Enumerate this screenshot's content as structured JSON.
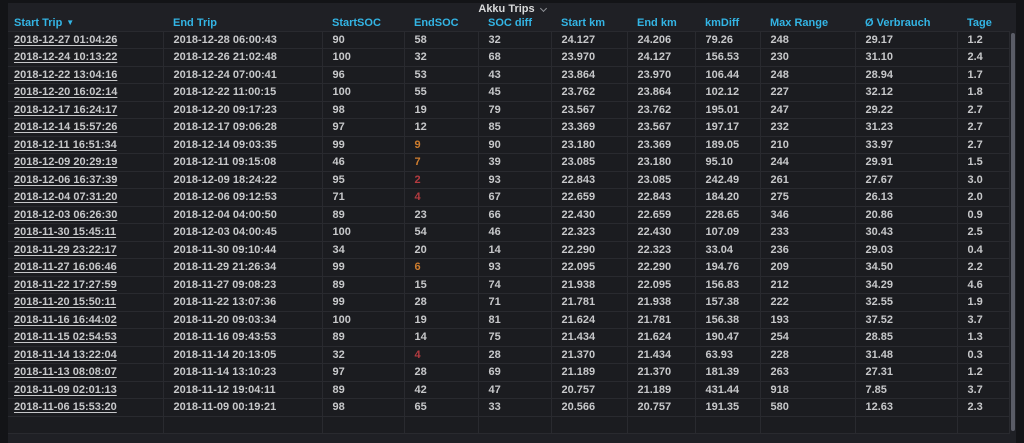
{
  "panel": {
    "title": "Akku Trips"
  },
  "colors": {
    "header_blue": "#33b5e5",
    "threshold_orange": "#cd7c2e",
    "threshold_red": "#b33b40",
    "cell_text": "#c7c8ca",
    "row_bg": "#1b1c20",
    "panel_bg": "#1f2025",
    "page_bg": "#131417"
  },
  "icons": {
    "title_chevron": "chevron-down",
    "sort_caret": "caret-down"
  },
  "table": {
    "columns": [
      {
        "key": "start_trip",
        "label": "Start Trip",
        "sorted": true,
        "link": true
      },
      {
        "key": "end_trip",
        "label": "End Trip",
        "sorted": false,
        "link": false
      },
      {
        "key": "start_soc",
        "label": "StartSOC",
        "sorted": false,
        "link": false
      },
      {
        "key": "end_soc",
        "label": "EndSOC",
        "sorted": false,
        "link": false
      },
      {
        "key": "soc_diff",
        "label": "SOC diff",
        "sorted": false,
        "link": false
      },
      {
        "key": "start_km",
        "label": "Start km",
        "sorted": false,
        "link": false
      },
      {
        "key": "end_km",
        "label": "End km",
        "sorted": false,
        "link": false
      },
      {
        "key": "km_diff",
        "label": "kmDiff",
        "sorted": false,
        "link": false
      },
      {
        "key": "max_range",
        "label": "Max Range",
        "sorted": false,
        "link": false
      },
      {
        "key": "verbrauch",
        "label": "Ø Verbrauch",
        "sorted": false,
        "link": false
      },
      {
        "key": "tage",
        "label": "Tage",
        "sorted": false,
        "link": false
      }
    ],
    "rows": [
      {
        "start_trip": "2018-12-27 01:04:26",
        "end_trip": "2018-12-28 06:00:43",
        "start_soc": "90",
        "end_soc": "58",
        "end_soc_color": "default",
        "soc_diff": "32",
        "start_km": "24.127",
        "end_km": "24.206",
        "km_diff": "79.26",
        "max_range": "248",
        "verbrauch": "29.17",
        "tage": "1.2"
      },
      {
        "start_trip": "2018-12-24 10:13:22",
        "end_trip": "2018-12-26 21:02:48",
        "start_soc": "100",
        "end_soc": "32",
        "end_soc_color": "default",
        "soc_diff": "68",
        "start_km": "23.970",
        "end_km": "24.127",
        "km_diff": "156.53",
        "max_range": "230",
        "verbrauch": "31.10",
        "tage": "2.4"
      },
      {
        "start_trip": "2018-12-22 13:04:16",
        "end_trip": "2018-12-24 07:00:41",
        "start_soc": "96",
        "end_soc": "53",
        "end_soc_color": "default",
        "soc_diff": "43",
        "start_km": "23.864",
        "end_km": "23.970",
        "km_diff": "106.44",
        "max_range": "248",
        "verbrauch": "28.94",
        "tage": "1.7"
      },
      {
        "start_trip": "2018-12-20 16:02:14",
        "end_trip": "2018-12-22 11:00:15",
        "start_soc": "100",
        "end_soc": "55",
        "end_soc_color": "default",
        "soc_diff": "45",
        "start_km": "23.762",
        "end_km": "23.864",
        "km_diff": "102.12",
        "max_range": "227",
        "verbrauch": "32.12",
        "tage": "1.8"
      },
      {
        "start_trip": "2018-12-17 16:24:17",
        "end_trip": "2018-12-20 09:17:23",
        "start_soc": "98",
        "end_soc": "19",
        "end_soc_color": "default",
        "soc_diff": "79",
        "start_km": "23.567",
        "end_km": "23.762",
        "km_diff": "195.01",
        "max_range": "247",
        "verbrauch": "29.22",
        "tage": "2.7"
      },
      {
        "start_trip": "2018-12-14 15:57:26",
        "end_trip": "2018-12-17 09:06:28",
        "start_soc": "97",
        "end_soc": "12",
        "end_soc_color": "default",
        "soc_diff": "85",
        "start_km": "23.369",
        "end_km": "23.567",
        "km_diff": "197.17",
        "max_range": "232",
        "verbrauch": "31.23",
        "tage": "2.7"
      },
      {
        "start_trip": "2018-12-11 16:51:34",
        "end_trip": "2018-12-14 09:03:35",
        "start_soc": "99",
        "end_soc": "9",
        "end_soc_color": "orange",
        "soc_diff": "90",
        "start_km": "23.180",
        "end_km": "23.369",
        "km_diff": "189.05",
        "max_range": "210",
        "verbrauch": "33.97",
        "tage": "2.7"
      },
      {
        "start_trip": "2018-12-09 20:29:19",
        "end_trip": "2018-12-11 09:15:08",
        "start_soc": "46",
        "end_soc": "7",
        "end_soc_color": "orange",
        "soc_diff": "39",
        "start_km": "23.085",
        "end_km": "23.180",
        "km_diff": "95.10",
        "max_range": "244",
        "verbrauch": "29.91",
        "tage": "1.5"
      },
      {
        "start_trip": "2018-12-06 16:37:39",
        "end_trip": "2018-12-09 18:24:22",
        "start_soc": "95",
        "end_soc": "2",
        "end_soc_color": "red",
        "soc_diff": "93",
        "start_km": "22.843",
        "end_km": "23.085",
        "km_diff": "242.49",
        "max_range": "261",
        "verbrauch": "27.67",
        "tage": "3.0"
      },
      {
        "start_trip": "2018-12-04 07:31:20",
        "end_trip": "2018-12-06 09:12:53",
        "start_soc": "71",
        "end_soc": "4",
        "end_soc_color": "red",
        "soc_diff": "67",
        "start_km": "22.659",
        "end_km": "22.843",
        "km_diff": "184.20",
        "max_range": "275",
        "verbrauch": "26.13",
        "tage": "2.0"
      },
      {
        "start_trip": "2018-12-03 06:26:30",
        "end_trip": "2018-12-04 04:00:50",
        "start_soc": "89",
        "end_soc": "23",
        "end_soc_color": "default",
        "soc_diff": "66",
        "start_km": "22.430",
        "end_km": "22.659",
        "km_diff": "228.65",
        "max_range": "346",
        "verbrauch": "20.86",
        "tage": "0.9"
      },
      {
        "start_trip": "2018-11-30 15:45:11",
        "end_trip": "2018-12-03 04:00:45",
        "start_soc": "100",
        "end_soc": "54",
        "end_soc_color": "default",
        "soc_diff": "46",
        "start_km": "22.323",
        "end_km": "22.430",
        "km_diff": "107.09",
        "max_range": "233",
        "verbrauch": "30.43",
        "tage": "2.5"
      },
      {
        "start_trip": "2018-11-29 23:22:17",
        "end_trip": "2018-11-30 09:10:44",
        "start_soc": "34",
        "end_soc": "20",
        "end_soc_color": "default",
        "soc_diff": "14",
        "start_km": "22.290",
        "end_km": "22.323",
        "km_diff": "33.04",
        "max_range": "236",
        "verbrauch": "29.03",
        "tage": "0.4"
      },
      {
        "start_trip": "2018-11-27 16:06:46",
        "end_trip": "2018-11-29 21:26:34",
        "start_soc": "99",
        "end_soc": "6",
        "end_soc_color": "orange",
        "soc_diff": "93",
        "start_km": "22.095",
        "end_km": "22.290",
        "km_diff": "194.76",
        "max_range": "209",
        "verbrauch": "34.50",
        "tage": "2.2"
      },
      {
        "start_trip": "2018-11-22 17:27:59",
        "end_trip": "2018-11-27 09:08:23",
        "start_soc": "89",
        "end_soc": "15",
        "end_soc_color": "default",
        "soc_diff": "74",
        "start_km": "21.938",
        "end_km": "22.095",
        "km_diff": "156.83",
        "max_range": "212",
        "verbrauch": "34.29",
        "tage": "4.6"
      },
      {
        "start_trip": "2018-11-20 15:50:11",
        "end_trip": "2018-11-22 13:07:36",
        "start_soc": "99",
        "end_soc": "28",
        "end_soc_color": "default",
        "soc_diff": "71",
        "start_km": "21.781",
        "end_km": "21.938",
        "km_diff": "157.38",
        "max_range": "222",
        "verbrauch": "32.55",
        "tage": "1.9"
      },
      {
        "start_trip": "2018-11-16 16:44:02",
        "end_trip": "2018-11-20 09:03:34",
        "start_soc": "100",
        "end_soc": "19",
        "end_soc_color": "default",
        "soc_diff": "81",
        "start_km": "21.624",
        "end_km": "21.781",
        "km_diff": "156.38",
        "max_range": "193",
        "verbrauch": "37.52",
        "tage": "3.7"
      },
      {
        "start_trip": "2018-11-15 02:54:53",
        "end_trip": "2018-11-16 09:43:53",
        "start_soc": "89",
        "end_soc": "14",
        "end_soc_color": "default",
        "soc_diff": "75",
        "start_km": "21.434",
        "end_km": "21.624",
        "km_diff": "190.47",
        "max_range": "254",
        "verbrauch": "28.85",
        "tage": "1.3"
      },
      {
        "start_trip": "2018-11-14 13:22:04",
        "end_trip": "2018-11-14 20:13:05",
        "start_soc": "32",
        "end_soc": "4",
        "end_soc_color": "red",
        "soc_diff": "28",
        "start_km": "21.370",
        "end_km": "21.434",
        "km_diff": "63.93",
        "max_range": "228",
        "verbrauch": "31.48",
        "tage": "0.3"
      },
      {
        "start_trip": "2018-11-13 08:08:07",
        "end_trip": "2018-11-14 13:10:23",
        "start_soc": "97",
        "end_soc": "28",
        "end_soc_color": "default",
        "soc_diff": "69",
        "start_km": "21.189",
        "end_km": "21.370",
        "km_diff": "181.39",
        "max_range": "263",
        "verbrauch": "27.31",
        "tage": "1.2"
      },
      {
        "start_trip": "2018-11-09 02:01:13",
        "end_trip": "2018-11-12 19:04:11",
        "start_soc": "89",
        "end_soc": "42",
        "end_soc_color": "default",
        "soc_diff": "47",
        "start_km": "20.757",
        "end_km": "21.189",
        "km_diff": "431.44",
        "max_range": "918",
        "verbrauch": "7.85",
        "tage": "3.7"
      },
      {
        "start_trip": "2018-11-06 15:53:20",
        "end_trip": "2018-11-09 00:19:21",
        "start_soc": "98",
        "end_soc": "65",
        "end_soc_color": "default",
        "soc_diff": "33",
        "start_km": "20.566",
        "end_km": "20.757",
        "km_diff": "191.35",
        "max_range": "580",
        "verbrauch": "12.63",
        "tage": "2.3"
      }
    ]
  }
}
